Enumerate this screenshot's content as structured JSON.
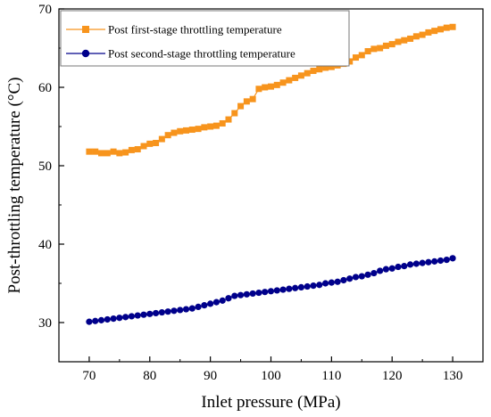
{
  "chart_data": {
    "type": "line",
    "title": "",
    "xlabel": "Inlet pressure (MPa)",
    "ylabel": "Post-throttling temperature (°C)",
    "xlim": [
      65,
      135
    ],
    "ylim": [
      25,
      70
    ],
    "x_ticks": [
      "70",
      "80",
      "90",
      "100",
      "110",
      "120",
      "130"
    ],
    "y_ticks": [
      "30",
      "40",
      "50",
      "60",
      "70"
    ],
    "grid": false,
    "legend_position": "top-left",
    "series": [
      {
        "name": "Post first-stage throttling temperature",
        "color": "#F7941D",
        "marker": "square",
        "x": [
          70,
          71,
          72,
          73,
          74,
          75,
          76,
          77,
          78,
          79,
          80,
          81,
          82,
          83,
          84,
          85,
          86,
          87,
          88,
          89,
          90,
          91,
          92,
          93,
          94,
          95,
          96,
          97,
          98,
          99,
          100,
          101,
          102,
          103,
          104,
          105,
          106,
          107,
          108,
          109,
          110,
          111,
          112,
          113,
          114,
          115,
          116,
          117,
          118,
          119,
          120,
          121,
          122,
          123,
          124,
          125,
          126,
          127,
          128,
          129,
          130
        ],
        "y": [
          51.8,
          51.8,
          51.6,
          51.6,
          51.8,
          51.6,
          51.7,
          52.0,
          52.1,
          52.5,
          52.8,
          52.9,
          53.4,
          53.9,
          54.2,
          54.4,
          54.5,
          54.6,
          54.7,
          54.9,
          55.0,
          55.1,
          55.4,
          55.9,
          56.7,
          57.6,
          58.2,
          58.5,
          59.8,
          60.0,
          60.1,
          60.3,
          60.6,
          60.9,
          61.2,
          61.5,
          61.8,
          62.1,
          62.3,
          62.5,
          62.6,
          62.8,
          63.0,
          63.3,
          63.8,
          64.1,
          64.6,
          64.9,
          65.0,
          65.3,
          65.5,
          65.8,
          66.0,
          66.2,
          66.5,
          66.7,
          67.0,
          67.2,
          67.4,
          67.6,
          67.7
        ]
      },
      {
        "name": "Post second-stage throttling temperature",
        "color": "#00008B",
        "marker": "circle",
        "x": [
          70,
          71,
          72,
          73,
          74,
          75,
          76,
          77,
          78,
          79,
          80,
          81,
          82,
          83,
          84,
          85,
          86,
          87,
          88,
          89,
          90,
          91,
          92,
          93,
          94,
          95,
          96,
          97,
          98,
          99,
          100,
          101,
          102,
          103,
          104,
          105,
          106,
          107,
          108,
          109,
          110,
          111,
          112,
          113,
          114,
          115,
          116,
          117,
          118,
          119,
          120,
          121,
          122,
          123,
          124,
          125,
          126,
          127,
          128,
          129,
          130
        ],
        "y": [
          30.1,
          30.2,
          30.3,
          30.4,
          30.5,
          30.6,
          30.7,
          30.8,
          30.9,
          31.0,
          31.1,
          31.2,
          31.3,
          31.4,
          31.5,
          31.6,
          31.7,
          31.8,
          32.0,
          32.2,
          32.4,
          32.6,
          32.8,
          33.1,
          33.4,
          33.5,
          33.6,
          33.7,
          33.8,
          33.9,
          34.0,
          34.1,
          34.2,
          34.3,
          34.4,
          34.5,
          34.6,
          34.7,
          34.8,
          35.0,
          35.1,
          35.2,
          35.4,
          35.6,
          35.8,
          35.9,
          36.1,
          36.3,
          36.6,
          36.8,
          36.9,
          37.1,
          37.2,
          37.4,
          37.5,
          37.6,
          37.7,
          37.8,
          37.9,
          38.0,
          38.2
        ]
      }
    ]
  }
}
